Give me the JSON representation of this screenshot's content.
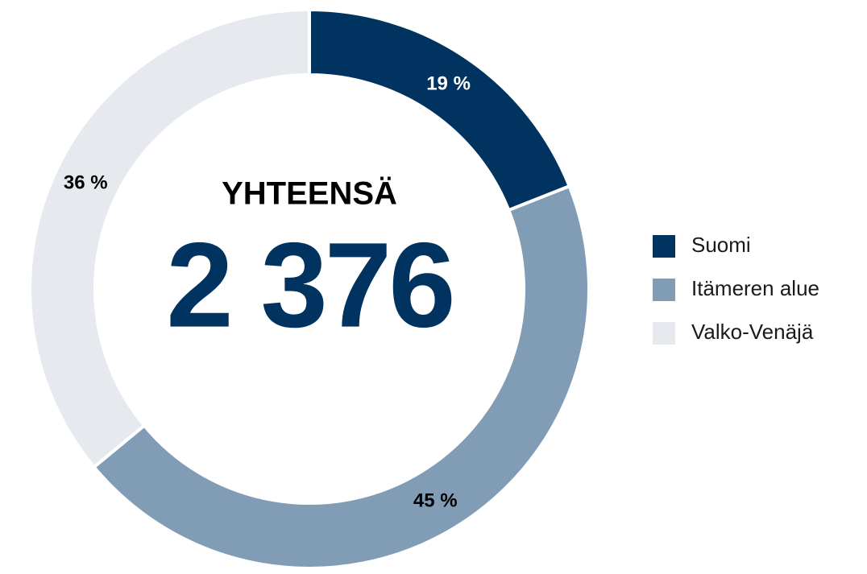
{
  "chart_data": {
    "type": "pie",
    "donut": true,
    "center_label": "YHTEENSÄ",
    "center_text": "2 376",
    "categories": [
      "Suomi",
      "Itämeren alue",
      "Valko-Venäjä"
    ],
    "values": [
      19,
      45,
      36
    ],
    "value_labels": [
      "19 %",
      "45 %",
      "36 %"
    ],
    "colors": [
      "#00335f",
      "#819cb5",
      "#e6eaef"
    ],
    "legend": "right"
  }
}
